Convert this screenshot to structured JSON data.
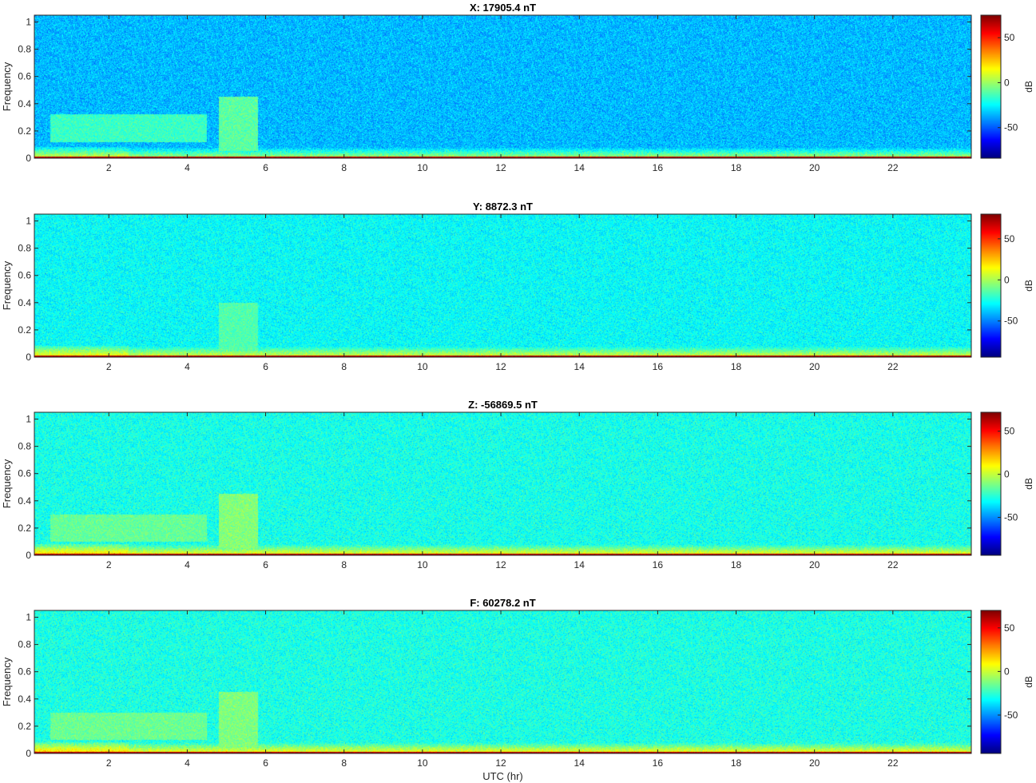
{
  "figure": {
    "shared_xlabel": "UTC (hr)"
  },
  "chart_data": [
    {
      "type": "heatmap",
      "title": "X: 17905.4 nT",
      "xlabel": "",
      "ylabel": "Frequency",
      "xlim": [
        0.1,
        24
      ],
      "ylim": [
        0,
        1.05
      ],
      "xticks": [
        2,
        4,
        6,
        8,
        10,
        12,
        14,
        16,
        18,
        20,
        22
      ],
      "yticks": [
        0,
        0.2,
        0.4,
        0.6,
        0.8,
        1
      ],
      "colorbar": {
        "label": "dB",
        "range": [
          -84,
          75
        ],
        "ticks": [
          50,
          0,
          -50
        ]
      },
      "colormap": "jet",
      "bursts": [
        {
          "x": [
            0.5,
            4.5
          ],
          "y": [
            0.12,
            0.32
          ],
          "level_db": -15
        },
        {
          "x": [
            4.8,
            5.8
          ],
          "y": [
            0.05,
            0.45
          ],
          "level_db": -10
        }
      ]
    },
    {
      "type": "heatmap",
      "title": "Y: 8872.3 nT",
      "xlabel": "",
      "ylabel": "Frequency",
      "xlim": [
        0.1,
        24
      ],
      "ylim": [
        0,
        1.05
      ],
      "xticks": [
        2,
        4,
        6,
        8,
        10,
        12,
        14,
        16,
        18,
        20,
        22
      ],
      "yticks": [
        0,
        0.2,
        0.4,
        0.6,
        0.8,
        1
      ],
      "colorbar": {
        "label": "dB",
        "range": [
          -94,
          80
        ],
        "ticks": [
          50,
          0,
          -50
        ]
      },
      "colormap": "jet",
      "bursts": [
        {
          "x": [
            4.8,
            5.8
          ],
          "y": [
            0.05,
            0.4
          ],
          "level_db": -15
        }
      ]
    },
    {
      "type": "heatmap",
      "title": "Z: -56869.5 nT",
      "xlabel": "",
      "ylabel": "Frequency",
      "xlim": [
        0.1,
        24
      ],
      "ylim": [
        0,
        1.05
      ],
      "xticks": [
        2,
        4,
        6,
        8,
        10,
        12,
        14,
        16,
        18,
        20,
        22
      ],
      "yticks": [
        0,
        0.2,
        0.4,
        0.6,
        0.8,
        1
      ],
      "colorbar": {
        "label": "dB",
        "range": [
          -94,
          72
        ],
        "ticks": [
          50,
          0,
          -50
        ]
      },
      "colormap": "jet",
      "bursts": [
        {
          "x": [
            0.5,
            4.5
          ],
          "y": [
            0.1,
            0.3
          ],
          "level_db": -15
        },
        {
          "x": [
            4.8,
            5.8
          ],
          "y": [
            0.05,
            0.45
          ],
          "level_db": -10
        }
      ]
    },
    {
      "type": "heatmap",
      "title": "F: 60278.2 nT",
      "xlabel": "UTC (hr)",
      "ylabel": "Frequency",
      "xlim": [
        0.1,
        24
      ],
      "ylim": [
        0,
        1.05
      ],
      "xticks": [
        2,
        4,
        6,
        8,
        10,
        12,
        14,
        16,
        18,
        20,
        22
      ],
      "yticks": [
        0,
        0.2,
        0.4,
        0.6,
        0.8,
        1
      ],
      "colorbar": {
        "label": "dB",
        "range": [
          -94,
          70
        ],
        "ticks": [
          50,
          0,
          -50
        ]
      },
      "colormap": "jet",
      "bursts": [
        {
          "x": [
            0.5,
            4.5
          ],
          "y": [
            0.1,
            0.3
          ],
          "level_db": -15
        },
        {
          "x": [
            4.8,
            5.8
          ],
          "y": [
            0.05,
            0.45
          ],
          "level_db": -12
        }
      ]
    }
  ]
}
